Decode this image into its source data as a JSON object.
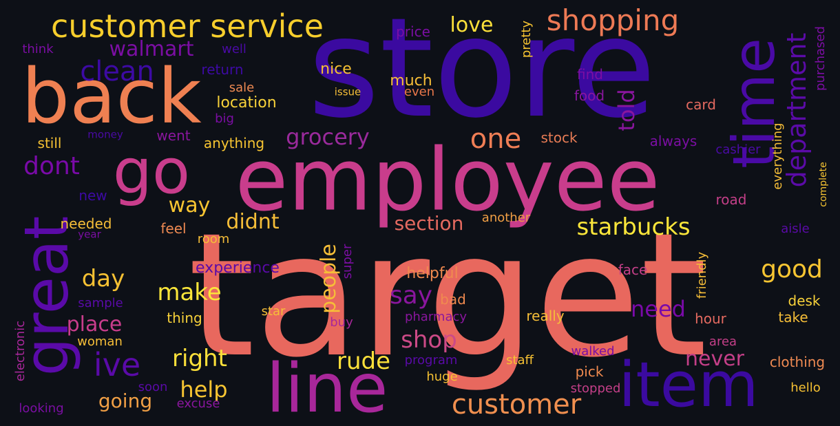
{
  "words": [
    {
      "text": "target",
      "color": "#e8685e"
    },
    {
      "text": "store",
      "color": "#3b0aa0"
    },
    {
      "text": "employee",
      "color": "#c93d8c"
    },
    {
      "text": "back",
      "color": "#ef8052"
    },
    {
      "text": "go",
      "color": "#c93d8c"
    },
    {
      "text": "line",
      "color": "#a8279a"
    },
    {
      "text": "item",
      "color": "#3b0aa0"
    },
    {
      "text": "great",
      "color": "#5a0aa8"
    },
    {
      "text": "time",
      "color": "#4a0aa6"
    },
    {
      "text": "customer service",
      "color": "#f7ce2c"
    },
    {
      "text": "shopping",
      "color": "#ee7a55"
    },
    {
      "text": "department",
      "color": "#5b0ba8"
    },
    {
      "text": "customer",
      "color": "#f08f4f"
    },
    {
      "text": "clean",
      "color": "#3d0aa4"
    },
    {
      "text": "ive",
      "color": "#5a0aa8"
    },
    {
      "text": "one",
      "color": "#ef7e55"
    },
    {
      "text": "good",
      "color": "#f8c532"
    },
    {
      "text": "starbucks",
      "color": "#fbe63a"
    },
    {
      "text": "shop",
      "color": "#cc4a87"
    },
    {
      "text": "dont",
      "color": "#7a0aa8"
    },
    {
      "text": "walmart",
      "color": "#7b0ea3"
    },
    {
      "text": "grocery",
      "color": "#9a2a9c"
    },
    {
      "text": "told",
      "color": "#8a169e"
    },
    {
      "text": "people",
      "color": "#f6be38"
    },
    {
      "text": "say",
      "color": "#8a169e"
    },
    {
      "text": "make",
      "color": "#fbe63a"
    },
    {
      "text": "need",
      "color": "#7a0aa8"
    },
    {
      "text": "right",
      "color": "#fce03a"
    },
    {
      "text": "rude",
      "color": "#fce03a"
    },
    {
      "text": "never",
      "color": "#c43f88"
    },
    {
      "text": "help",
      "color": "#f8c532"
    },
    {
      "text": "going",
      "color": "#f09f45"
    },
    {
      "text": "day",
      "color": "#f6c133"
    },
    {
      "text": "place",
      "color": "#c93d8c"
    },
    {
      "text": "way",
      "color": "#f8c532"
    },
    {
      "text": "didnt",
      "color": "#f6be38"
    },
    {
      "text": "section",
      "color": "#e56a60"
    },
    {
      "text": "love",
      "color": "#fce03a"
    },
    {
      "text": "price",
      "color": "#7b0ea3"
    },
    {
      "text": "pretty",
      "color": "#f8c532"
    },
    {
      "text": "purchased",
      "color": "#7b0ea3"
    },
    {
      "text": "nice",
      "color": "#f6c133"
    },
    {
      "text": "much",
      "color": "#f6be38"
    },
    {
      "text": "even",
      "color": "#e9774a"
    },
    {
      "text": "find",
      "color": "#7b0ea3"
    },
    {
      "text": "food",
      "color": "#8a169e"
    },
    {
      "text": "card",
      "color": "#e56a60"
    },
    {
      "text": "location",
      "color": "#f8d23a"
    },
    {
      "text": "return",
      "color": "#3d0aa4"
    },
    {
      "text": "sale",
      "color": "#ef8a52"
    },
    {
      "text": "issue",
      "color": "#f6be38"
    },
    {
      "text": "big",
      "color": "#7b0ea3"
    },
    {
      "text": "well",
      "color": "#4a0aa6"
    },
    {
      "text": "think",
      "color": "#7b0ea3"
    },
    {
      "text": "money",
      "color": "#4a0aa6"
    },
    {
      "text": "went",
      "color": "#8a169e"
    },
    {
      "text": "anything",
      "color": "#f8c532"
    },
    {
      "text": "still",
      "color": "#f6c133"
    },
    {
      "text": "stock",
      "color": "#e87c55"
    },
    {
      "text": "always",
      "color": "#7b0ea3"
    },
    {
      "text": "cashier",
      "color": "#4a0aa6"
    },
    {
      "text": "everything",
      "color": "#f6be38"
    },
    {
      "text": "complete",
      "color": "#f8c532"
    },
    {
      "text": "road",
      "color": "#c43f88"
    },
    {
      "text": "aisle",
      "color": "#5a0aa8"
    },
    {
      "text": "new",
      "color": "#3d0aa4"
    },
    {
      "text": "needed",
      "color": "#f6be38"
    },
    {
      "text": "year",
      "color": "#7b0ea3"
    },
    {
      "text": "feel",
      "color": "#ef8a52"
    },
    {
      "text": "room",
      "color": "#f6be38"
    },
    {
      "text": "another",
      "color": "#f09f45"
    },
    {
      "text": "experience",
      "color": "#5a0aa8"
    },
    {
      "text": "super",
      "color": "#7b0ea3"
    },
    {
      "text": "helpful",
      "color": "#f08a4f"
    },
    {
      "text": "face",
      "color": "#c43f88"
    },
    {
      "text": "friendly",
      "color": "#f6be38"
    },
    {
      "text": "bad",
      "color": "#f08a4f"
    },
    {
      "text": "pharmacy",
      "color": "#8a169e"
    },
    {
      "text": "really",
      "color": "#f6be38"
    },
    {
      "text": "desk",
      "color": "#f8d23a"
    },
    {
      "text": "take",
      "color": "#f6be38"
    },
    {
      "text": "hour",
      "color": "#e56a60"
    },
    {
      "text": "star",
      "color": "#f6be38"
    },
    {
      "text": "buy",
      "color": "#a8279a"
    },
    {
      "text": "thing",
      "color": "#f8d23a"
    },
    {
      "text": "sample",
      "color": "#5a0aa8"
    },
    {
      "text": "electronic",
      "color": "#a8279a"
    },
    {
      "text": "woman",
      "color": "#f6be38"
    },
    {
      "text": "soon",
      "color": "#5a0aa8"
    },
    {
      "text": "excuse",
      "color": "#8a169e"
    },
    {
      "text": "looking",
      "color": "#7b0ea3"
    },
    {
      "text": "program",
      "color": "#5a0aa8"
    },
    {
      "text": "huge",
      "color": "#f6c133"
    },
    {
      "text": "staff",
      "color": "#f6c133"
    },
    {
      "text": "walked",
      "color": "#7b0ea3"
    },
    {
      "text": "pick",
      "color": "#f08a4f"
    },
    {
      "text": "stopped",
      "color": "#c43f88"
    },
    {
      "text": "area",
      "color": "#c43f88"
    },
    {
      "text": "clothing",
      "color": "#ef8a52"
    },
    {
      "text": "hello",
      "color": "#f6c133"
    }
  ]
}
